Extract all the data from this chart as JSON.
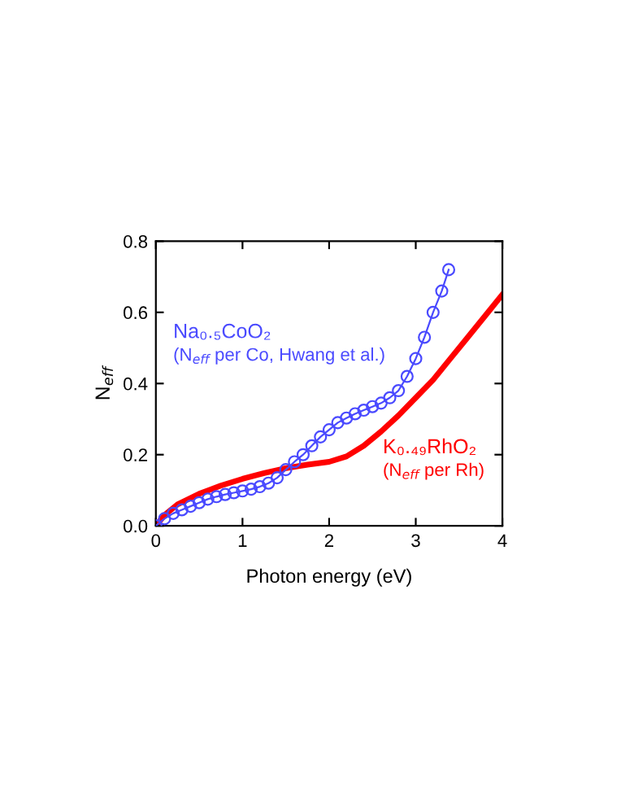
{
  "chart_data": {
    "type": "line",
    "xlabel": "Photon energy (eV)",
    "ylabel": "N$_{eff}$",
    "xlim": [
      0,
      4
    ],
    "ylim": [
      0,
      0.8
    ],
    "xticks": [
      0,
      1,
      2,
      3,
      4
    ],
    "yticks": [
      {
        "value": 0,
        "label": "0.0"
      },
      0.2,
      0.4,
      0.6,
      0.8
    ],
    "grid": false,
    "series": [
      {
        "name": "Na₀.₅CoO₂",
        "color": "#4a4aff",
        "marker": "circle",
        "x": [
          0,
          0.1,
          0.2,
          0.3,
          0.4,
          0.5,
          0.6,
          0.7,
          0.8,
          0.9,
          1.0,
          1.1,
          1.2,
          1.3,
          1.4,
          1.5,
          1.6,
          1.7,
          1.8,
          1.9,
          2.0,
          2.1,
          2.2,
          2.3,
          2.4,
          2.5,
          2.6,
          2.7,
          2.8,
          2.9,
          3.0,
          3.1,
          3.2,
          3.3,
          3.38
        ],
        "values": [
          0,
          0.02,
          0.035,
          0.045,
          0.055,
          0.065,
          0.075,
          0.082,
          0.088,
          0.093,
          0.098,
          0.103,
          0.11,
          0.12,
          0.135,
          0.158,
          0.18,
          0.2,
          0.225,
          0.25,
          0.27,
          0.29,
          0.303,
          0.315,
          0.325,
          0.335,
          0.345,
          0.36,
          0.38,
          0.42,
          0.47,
          0.53,
          0.6,
          0.66,
          0.72
        ]
      },
      {
        "name": "K₀.₄₉RhO₂",
        "color": "#ff0000",
        "marker": "none",
        "x": [
          0,
          0.1,
          0.25,
          0.5,
          0.75,
          1.0,
          1.25,
          1.5,
          1.75,
          2.0,
          2.2,
          2.4,
          2.6,
          2.8,
          3.0,
          3.2,
          3.4,
          3.6,
          3.8,
          4.0
        ],
        "values": [
          0,
          0.03,
          0.06,
          0.09,
          0.113,
          0.132,
          0.148,
          0.162,
          0.172,
          0.18,
          0.195,
          0.225,
          0.265,
          0.31,
          0.36,
          0.41,
          0.47,
          0.53,
          0.59,
          0.65
        ]
      }
    ],
    "annotations": [
      "(N$_{eff}$ per Co, Hwang et al.)",
      "(N$_{eff}$ per Rh)"
    ]
  }
}
